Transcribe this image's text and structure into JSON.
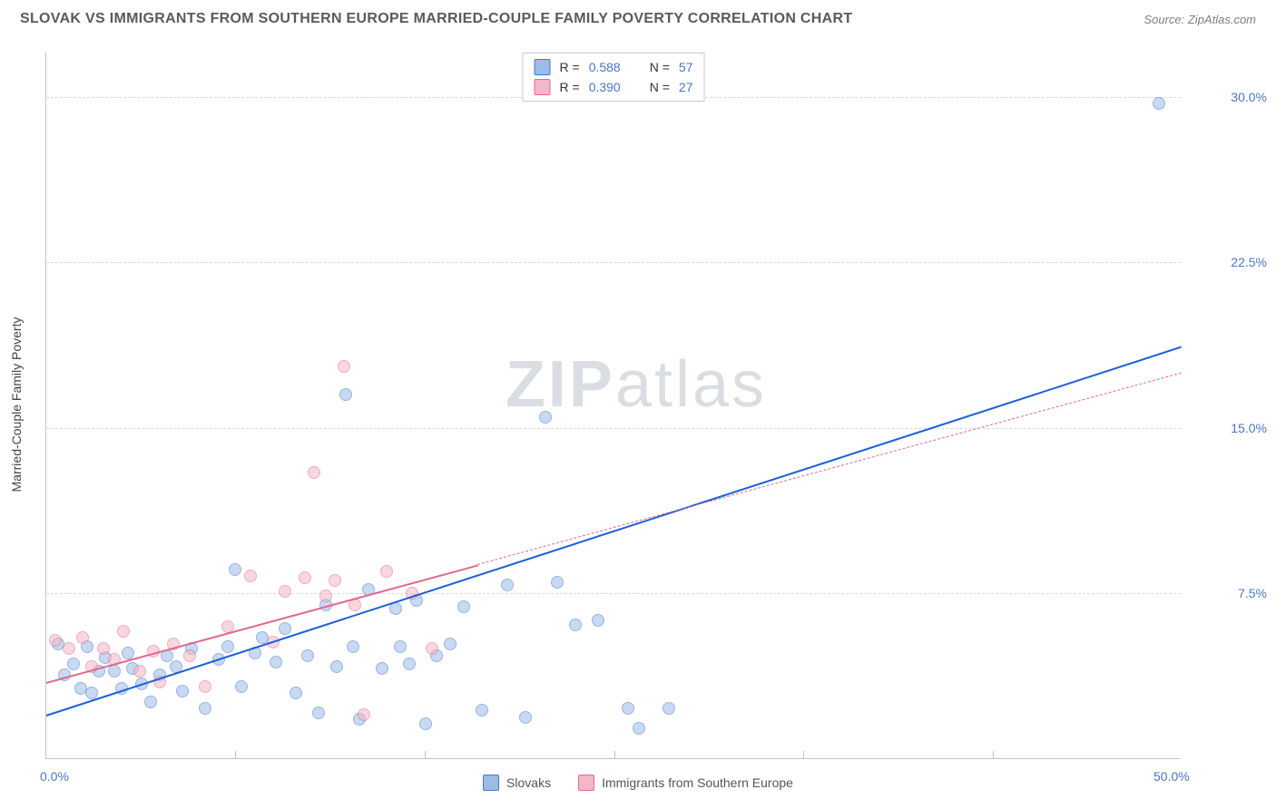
{
  "header": {
    "title": "SLOVAK VS IMMIGRANTS FROM SOUTHERN EUROPE MARRIED-COUPLE FAMILY POVERTY CORRELATION CHART",
    "source": "Source: ZipAtlas.com"
  },
  "watermark": {
    "zip": "ZIP",
    "atlas": "atlas"
  },
  "chart": {
    "type": "scatter",
    "background_color": "#ffffff",
    "grid_color": "#d8d8d8",
    "axis_color": "#c2c2c2",
    "tick_color": "#4a76c7",
    "label_color": "#444444",
    "y_label": "Married-Couple Family Poverty",
    "xlim": [
      0,
      50
    ],
    "ylim": [
      0,
      32
    ],
    "y_ticks": [
      {
        "v": 7.5,
        "label": "7.5%"
      },
      {
        "v": 15.0,
        "label": "15.0%"
      },
      {
        "v": 22.5,
        "label": "22.5%"
      },
      {
        "v": 30.0,
        "label": "30.0%"
      }
    ],
    "x_ticks_labels": [
      {
        "v": 0,
        "label": "0.0%"
      },
      {
        "v": 50,
        "label": "50.0%"
      }
    ],
    "x_ticks_minor": [
      8.33,
      16.67,
      25,
      33.33,
      41.67
    ],
    "marker_radius": 7,
    "marker_opacity": 0.55,
    "marker_stroke_width": 1.3,
    "series": [
      {
        "id": "slovaks",
        "label": "Slovaks",
        "legend_label": "Slovaks",
        "fill": "#9bbce6",
        "stroke": "#4a76c7",
        "trend_color": "#1d5fd6",
        "R": "0.588",
        "N": "57",
        "trend": {
          "x1": 0,
          "y1": 2.0,
          "x2": 50,
          "y2": 18.7,
          "solid_until_x": 50
        },
        "points": [
          [
            0.5,
            5.2
          ],
          [
            0.8,
            3.8
          ],
          [
            1.2,
            4.3
          ],
          [
            1.5,
            3.2
          ],
          [
            1.8,
            5.1
          ],
          [
            2.0,
            3.0
          ],
          [
            2.3,
            4.0
          ],
          [
            2.6,
            4.6
          ],
          [
            3.0,
            4.0
          ],
          [
            3.3,
            3.2
          ],
          [
            3.6,
            4.8
          ],
          [
            3.8,
            4.1
          ],
          [
            4.2,
            3.4
          ],
          [
            4.6,
            2.6
          ],
          [
            5.0,
            3.8
          ],
          [
            5.3,
            4.7
          ],
          [
            5.7,
            4.2
          ],
          [
            6.0,
            3.1
          ],
          [
            6.4,
            5.0
          ],
          [
            7.0,
            2.3
          ],
          [
            7.6,
            4.5
          ],
          [
            8.0,
            5.1
          ],
          [
            8.3,
            8.6
          ],
          [
            8.6,
            3.3
          ],
          [
            9.2,
            4.8
          ],
          [
            9.5,
            5.5
          ],
          [
            10.1,
            4.4
          ],
          [
            10.5,
            5.9
          ],
          [
            11.0,
            3.0
          ],
          [
            11.5,
            4.7
          ],
          [
            12.0,
            2.1
          ],
          [
            12.3,
            7.0
          ],
          [
            12.8,
            4.2
          ],
          [
            13.2,
            16.5
          ],
          [
            13.5,
            5.1
          ],
          [
            13.8,
            1.8
          ],
          [
            14.2,
            7.7
          ],
          [
            14.8,
            4.1
          ],
          [
            15.4,
            6.8
          ],
          [
            15.6,
            5.1
          ],
          [
            16.0,
            4.3
          ],
          [
            16.3,
            7.2
          ],
          [
            16.7,
            1.6
          ],
          [
            17.2,
            4.7
          ],
          [
            17.8,
            5.2
          ],
          [
            18.4,
            6.9
          ],
          [
            19.2,
            2.2
          ],
          [
            20.3,
            7.9
          ],
          [
            21.1,
            1.9
          ],
          [
            22.0,
            15.5
          ],
          [
            22.5,
            8.0
          ],
          [
            23.3,
            6.1
          ],
          [
            24.3,
            6.3
          ],
          [
            25.6,
            2.3
          ],
          [
            26.1,
            1.4
          ],
          [
            27.4,
            2.3
          ],
          [
            49.0,
            29.7
          ]
        ]
      },
      {
        "id": "immigrants-southern-europe",
        "label": "Immigrants from Southern Europe",
        "legend_label": "Immigrants from Southern Europe",
        "fill": "#f3b8c8",
        "stroke": "#e06a8d",
        "trend_color": "#e06a8d",
        "R": "0.390",
        "N": "27",
        "trend": {
          "x1": 0,
          "y1": 3.5,
          "x2": 50,
          "y2": 17.5,
          "solid_until_x": 19
        },
        "points": [
          [
            0.4,
            5.4
          ],
          [
            1.0,
            5.0
          ],
          [
            1.6,
            5.5
          ],
          [
            2.0,
            4.2
          ],
          [
            2.5,
            5.0
          ],
          [
            3.0,
            4.5
          ],
          [
            3.4,
            5.8
          ],
          [
            4.1,
            4.0
          ],
          [
            4.7,
            4.9
          ],
          [
            5.0,
            3.5
          ],
          [
            5.6,
            5.2
          ],
          [
            6.3,
            4.7
          ],
          [
            7.0,
            3.3
          ],
          [
            8.0,
            6.0
          ],
          [
            9.0,
            8.3
          ],
          [
            10.0,
            5.3
          ],
          [
            10.5,
            7.6
          ],
          [
            11.4,
            8.2
          ],
          [
            11.8,
            13.0
          ],
          [
            12.3,
            7.4
          ],
          [
            12.7,
            8.1
          ],
          [
            13.1,
            17.8
          ],
          [
            13.6,
            7.0
          ],
          [
            14.0,
            2.0
          ],
          [
            15.0,
            8.5
          ],
          [
            16.1,
            7.5
          ],
          [
            17.0,
            5.0
          ]
        ]
      }
    ]
  },
  "legend_top": {
    "r_label": "R =",
    "n_label": "N ="
  }
}
